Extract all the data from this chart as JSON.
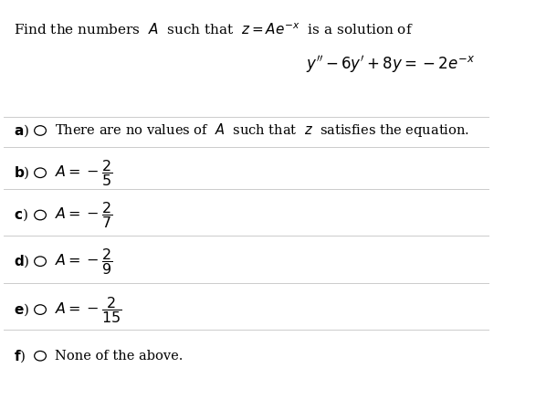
{
  "bg_color": "#ffffff",
  "text_color": "#000000",
  "figsize": [
    5.87,
    4.49
  ],
  "dpi": 100,
  "intro_line": "Find the numbers  $A$  such that  $z = Ae^{-x}$  is a solution of",
  "equation": "$y'' - 6y' + 8y = -2e^{-x}$",
  "options": [
    {
      "label": "a)",
      "text": "There are no values of  $A$  such that  $z$  satisfies the equation.",
      "has_circle": true,
      "is_fraction": false
    },
    {
      "label": "b)",
      "text": "$A = -\\dfrac{2}{5}$",
      "has_circle": true,
      "is_fraction": false
    },
    {
      "label": "c)",
      "text": "$A = -\\dfrac{2}{7}$",
      "has_circle": true,
      "is_fraction": false
    },
    {
      "label": "d)",
      "text": "$A = -\\dfrac{2}{9}$",
      "has_circle": true,
      "is_fraction": false
    },
    {
      "label": "e)",
      "text": "$A = -\\dfrac{2}{15}$",
      "has_circle": true,
      "is_fraction": false
    },
    {
      "label": "f)",
      "text": "None of the above.",
      "has_circle": true,
      "is_fraction": false
    }
  ]
}
